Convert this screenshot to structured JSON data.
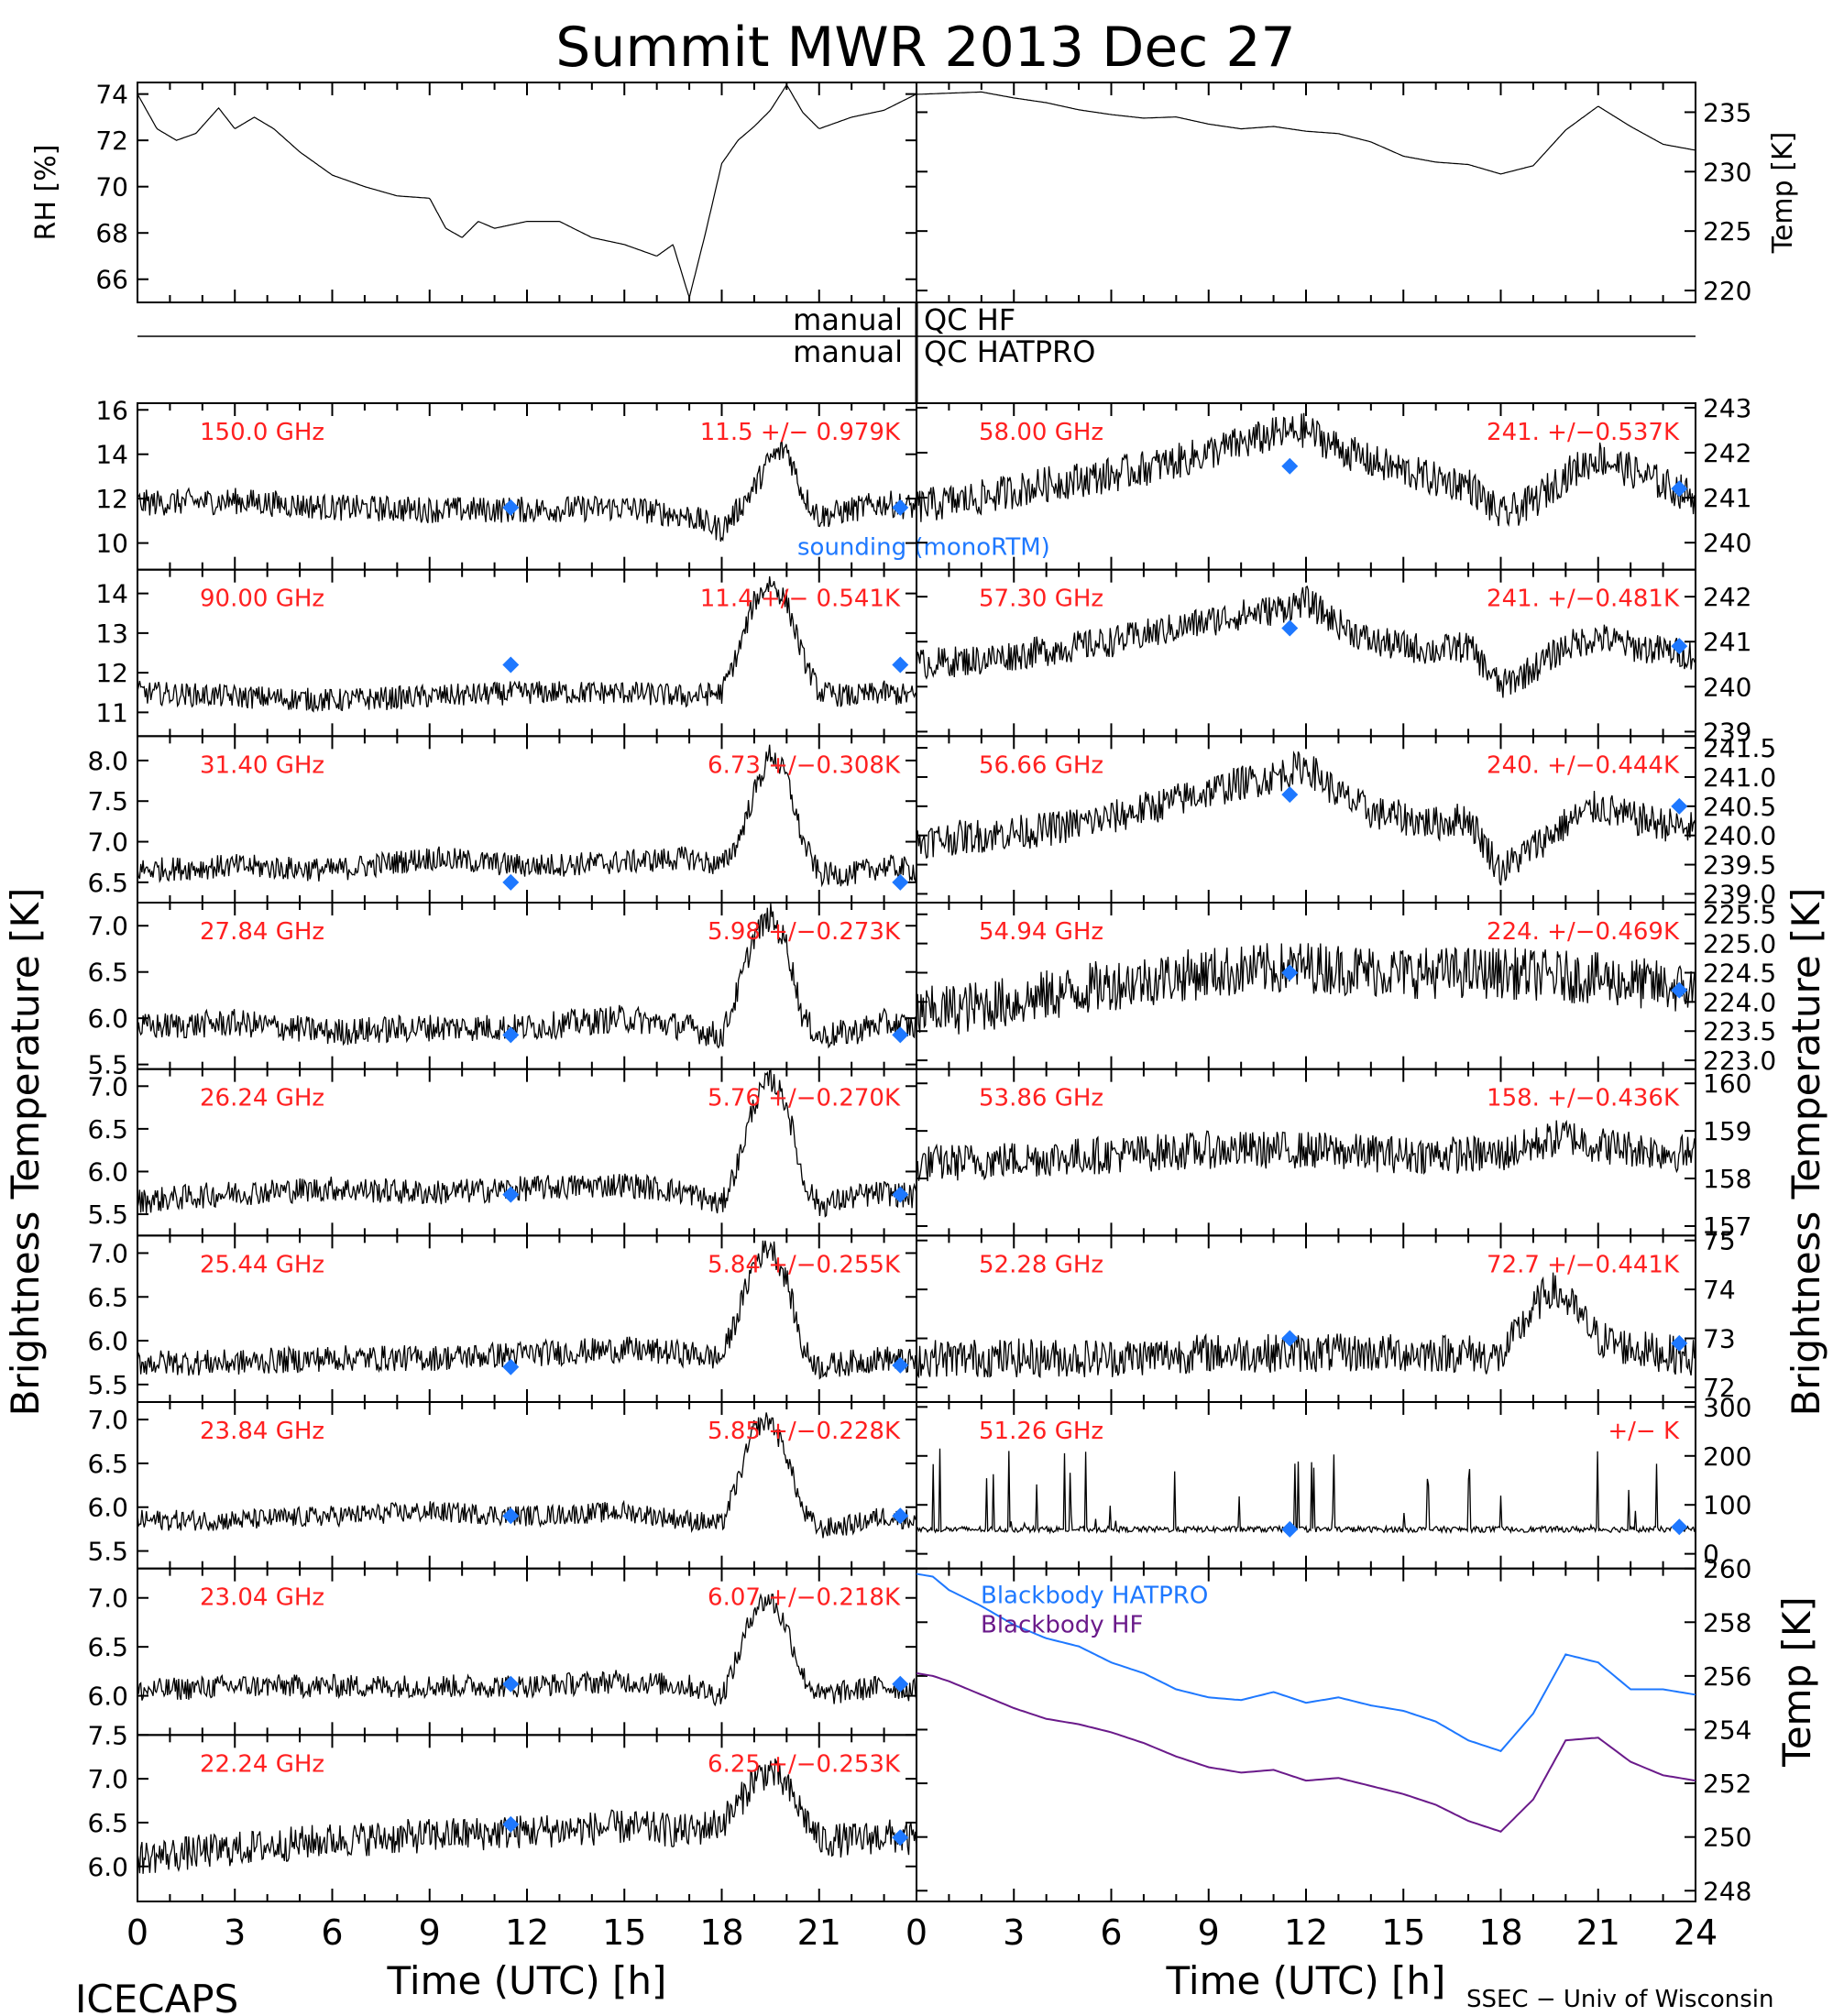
{
  "title": "Summit MWR 2013 Dec 27",
  "footer": {
    "left": "ICECAPS",
    "right": "SSEC − Univ of Wisconsin",
    "xlabel": "Time (UTC) [h]"
  },
  "left_ylabel": "Brightness Temperature [K]",
  "right_ylabel": "Brightness Temperature [K]",
  "qc_labels": {
    "manual_hf": "manual",
    "qc_hf": "QC HF",
    "manual_hatpro": "manual",
    "qc_hatpro": "QC HATPRO"
  },
  "colors": {
    "channel_label": "#ff2020",
    "sounding_marker": "#1e78ff",
    "blackbody_hatpro": "#1e78ff",
    "blackbody_hf": "#6a1a8a",
    "trace": "#000000"
  },
  "chart_data": [
    {
      "type": "line",
      "panel": "rh",
      "ylabel": "RH [%]",
      "ylim": [
        65,
        74.5
      ],
      "yticks": [
        66,
        68,
        70,
        72,
        74
      ],
      "xlim": [
        0,
        24
      ],
      "x": [
        0,
        0.6,
        1.2,
        1.8,
        2.5,
        3,
        3.6,
        4.2,
        5,
        6,
        7,
        8,
        9,
        9.5,
        10,
        10.5,
        11,
        12,
        13,
        14,
        15,
        16,
        16.5,
        17,
        17.5,
        18,
        18.5,
        19,
        19.5,
        20,
        20.5,
        21,
        22,
        23,
        24
      ],
      "y": [
        74,
        72.5,
        72,
        72.3,
        73.4,
        72.5,
        73,
        72.5,
        71.5,
        70.5,
        70,
        69.6,
        69.5,
        68.2,
        67.8,
        68.5,
        68.2,
        68.5,
        68.5,
        67.8,
        67.5,
        67,
        67.5,
        65.2,
        68,
        71,
        72,
        72.6,
        73.3,
        74.4,
        73.2,
        72.5,
        73,
        73.3,
        74
      ]
    },
    {
      "type": "line",
      "panel": "air_temp",
      "ylabel": "Temp [K]",
      "ylim": [
        219,
        237.5
      ],
      "yticks": [
        220,
        225,
        230,
        235
      ],
      "xlim": [
        0,
        24
      ],
      "x": [
        0,
        1,
        2,
        3,
        4,
        5,
        6,
        7,
        8,
        9,
        10,
        11,
        12,
        13,
        14,
        15,
        16,
        17,
        18,
        19,
        20,
        21,
        22,
        23,
        24
      ],
      "y": [
        236.5,
        236.6,
        236.7,
        236.2,
        235.8,
        235.2,
        234.8,
        234.5,
        234.6,
        234,
        233.6,
        233.8,
        233.4,
        233.2,
        232.5,
        231.3,
        230.8,
        230.6,
        229.8,
        230.5,
        233.5,
        235.5,
        233.8,
        232.3,
        231.8
      ]
    },
    {
      "type": "line",
      "panel": "ch",
      "channel": "150.0 GHz",
      "stat": "11.5 +/− 0.979K",
      "ylim": [
        8.8,
        16.3
      ],
      "yticks": [
        10,
        12,
        14,
        16
      ],
      "x": [
        0,
        3,
        6,
        9,
        12,
        15,
        17,
        18,
        18.5,
        19,
        19.5,
        20,
        20.5,
        21,
        22,
        23,
        24
      ],
      "y": [
        11.8,
        11.9,
        11.6,
        11.5,
        11.5,
        11.6,
        11.2,
        10.6,
        11.5,
        12.5,
        13.8,
        14.3,
        12.2,
        11.2,
        11.5,
        11.8,
        11.6
      ],
      "noise": 0.6,
      "sounding": [
        [
          11.5,
          11.6
        ],
        [
          23.5,
          11.6
        ]
      ],
      "note": "sounding (monoRTM)"
    },
    {
      "type": "line",
      "panel": "ch",
      "channel": "90.00 GHz",
      "stat": "11.4 +/− 0.541K",
      "ylim": [
        10.4,
        14.6
      ],
      "yticks": [
        11,
        12,
        13,
        14
      ],
      "x": [
        0,
        3,
        6,
        9,
        12,
        15,
        17,
        18,
        18.5,
        19,
        19.5,
        20,
        20.5,
        21,
        22,
        23,
        24
      ],
      "y": [
        11.5,
        11.4,
        11.3,
        11.4,
        11.5,
        11.5,
        11.4,
        11.5,
        12.5,
        13.8,
        14.3,
        13.8,
        12.4,
        11.5,
        11.4,
        11.5,
        11.4
      ],
      "noise": 0.3,
      "sounding": [
        [
          11.5,
          12.2
        ],
        [
          23.5,
          12.2
        ]
      ]
    },
    {
      "type": "line",
      "panel": "ch",
      "channel": "31.40 GHz",
      "stat": "6.73 +/−0.308K",
      "ylim": [
        6.25,
        8.3
      ],
      "yticks": [
        6.5,
        7.0,
        7.5,
        8.0
      ],
      "x": [
        0,
        3,
        6,
        9,
        12,
        15,
        17,
        18,
        18.5,
        19,
        19.5,
        20,
        20.5,
        21,
        22,
        23,
        24
      ],
      "y": [
        6.65,
        6.7,
        6.65,
        6.8,
        6.7,
        6.75,
        6.8,
        6.7,
        7.0,
        7.6,
        8.1,
        7.8,
        7.0,
        6.6,
        6.6,
        6.7,
        6.65
      ],
      "noise": 0.15,
      "sounding": [
        [
          11.5,
          6.5
        ],
        [
          23.5,
          6.5
        ]
      ]
    },
    {
      "type": "line",
      "panel": "ch",
      "channel": "27.84 GHz",
      "stat": "5.98 +/−0.273K",
      "ylim": [
        5.45,
        7.25
      ],
      "yticks": [
        5.5,
        6.0,
        6.5,
        7.0
      ],
      "x": [
        0,
        3,
        6,
        9,
        12,
        15,
        17,
        18,
        18.5,
        19,
        19.5,
        20,
        20.5,
        21,
        22,
        23,
        24
      ],
      "y": [
        5.9,
        5.95,
        5.85,
        5.9,
        5.9,
        6.0,
        5.9,
        5.8,
        6.3,
        6.9,
        7.1,
        6.8,
        6.0,
        5.8,
        5.85,
        5.95,
        5.9
      ],
      "noise": 0.15,
      "sounding": [
        [
          11.5,
          5.82
        ],
        [
          23.5,
          5.82
        ]
      ]
    },
    {
      "type": "line",
      "panel": "ch",
      "channel": "26.24 GHz",
      "stat": "5.76 +/−0.270K",
      "ylim": [
        5.25,
        7.2
      ],
      "yticks": [
        5.5,
        6.0,
        6.5,
        7.0
      ],
      "x": [
        0,
        3,
        6,
        9,
        12,
        15,
        17,
        18,
        18.5,
        19,
        19.5,
        20,
        20.5,
        21,
        22,
        23,
        24
      ],
      "y": [
        5.65,
        5.75,
        5.8,
        5.75,
        5.8,
        5.85,
        5.75,
        5.6,
        6.1,
        6.8,
        7.1,
        6.8,
        5.9,
        5.6,
        5.7,
        5.75,
        5.7
      ],
      "noise": 0.15,
      "sounding": [
        [
          11.5,
          5.73
        ],
        [
          23.5,
          5.73
        ]
      ]
    },
    {
      "type": "line",
      "panel": "ch",
      "channel": "25.44 GHz",
      "stat": "5.84 +/−0.255K",
      "ylim": [
        5.3,
        7.2
      ],
      "yticks": [
        5.5,
        6.0,
        6.5,
        7.0
      ],
      "x": [
        0,
        3,
        6,
        9,
        12,
        15,
        17,
        18,
        18.5,
        19,
        19.5,
        20,
        20.5,
        21,
        22,
        23,
        24
      ],
      "y": [
        5.75,
        5.75,
        5.8,
        5.8,
        5.85,
        5.9,
        5.85,
        5.8,
        6.3,
        6.9,
        7.1,
        6.7,
        5.9,
        5.7,
        5.75,
        5.8,
        5.75
      ],
      "noise": 0.15,
      "sounding": [
        [
          11.5,
          5.7
        ],
        [
          23.5,
          5.72
        ]
      ]
    },
    {
      "type": "line",
      "panel": "ch",
      "channel": "23.84 GHz",
      "stat": "5.85 +/−0.228K",
      "ylim": [
        5.3,
        7.2
      ],
      "yticks": [
        5.5,
        6.0,
        6.5,
        7.0
      ],
      "x": [
        0,
        3,
        6,
        9,
        12,
        15,
        17,
        18,
        18.5,
        19,
        19.5,
        20,
        20.5,
        21,
        22,
        23,
        24
      ],
      "y": [
        5.85,
        5.85,
        5.9,
        5.95,
        5.9,
        5.95,
        5.85,
        5.8,
        6.3,
        6.9,
        7.0,
        6.6,
        5.95,
        5.75,
        5.8,
        5.9,
        5.85
      ],
      "noise": 0.12,
      "sounding": [
        [
          11.5,
          5.9
        ],
        [
          23.5,
          5.9
        ]
      ]
    },
    {
      "type": "line",
      "panel": "ch",
      "channel": "23.04 GHz",
      "stat": "6.07 +/−0.218K",
      "ylim": [
        5.6,
        7.3
      ],
      "yticks": [
        6.0,
        6.5,
        7.0
      ],
      "x": [
        0,
        3,
        6,
        9,
        12,
        15,
        17,
        18,
        18.5,
        19,
        19.5,
        20,
        20.5,
        21,
        22,
        23,
        24
      ],
      "y": [
        6.05,
        6.1,
        6.1,
        6.1,
        6.1,
        6.15,
        6.1,
        6.0,
        6.4,
        6.9,
        7.0,
        6.7,
        6.2,
        6.0,
        6.05,
        6.1,
        6.05
      ],
      "noise": 0.12,
      "sounding": [
        [
          11.5,
          6.12
        ],
        [
          23.5,
          6.12
        ]
      ]
    },
    {
      "type": "line",
      "panel": "ch",
      "channel": "22.24 GHz",
      "stat": "6.25 +/−0.253K",
      "ylim": [
        5.6,
        7.5
      ],
      "yticks": [
        6.0,
        6.5,
        7.0,
        7.5
      ],
      "x": [
        0,
        3,
        6,
        9,
        12,
        15,
        17,
        18,
        18.5,
        19,
        19.5,
        20,
        20.5,
        21,
        22,
        23,
        24
      ],
      "y": [
        6.1,
        6.2,
        6.3,
        6.35,
        6.4,
        6.45,
        6.4,
        6.5,
        6.7,
        7.0,
        7.1,
        6.9,
        6.6,
        6.3,
        6.3,
        6.35,
        6.3
      ],
      "noise": 0.2,
      "sounding": [
        [
          11.5,
          6.48
        ],
        [
          23.5,
          6.33
        ]
      ]
    },
    {
      "type": "line",
      "panel": "ch",
      "channel": "58.00 GHz",
      "stat": "241. +/−0.537K",
      "ylim": [
        239.4,
        243.1
      ],
      "yticks": [
        240,
        241,
        242,
        243
      ],
      "x": [
        0,
        2,
        4,
        6,
        8,
        10,
        11,
        12,
        13,
        14,
        16,
        17,
        18,
        19,
        20,
        21,
        22,
        23,
        24
      ],
      "y": [
        240.8,
        241.0,
        241.3,
        241.5,
        241.8,
        242.2,
        242.4,
        242.5,
        242.1,
        241.8,
        241.4,
        241.3,
        240.6,
        240.9,
        241.5,
        241.9,
        241.6,
        241.3,
        241.0
      ],
      "noise": 0.4,
      "sounding": [
        [
          11.5,
          241.7
        ],
        [
          23.5,
          241.2
        ]
      ]
    },
    {
      "type": "line",
      "panel": "ch",
      "channel": "57.30 GHz",
      "stat": "241. +/−0.481K",
      "ylim": [
        238.9,
        242.6
      ],
      "yticks": [
        239,
        240,
        241,
        242
      ],
      "x": [
        0,
        2,
        4,
        6,
        8,
        10,
        11,
        12,
        13,
        14,
        16,
        17,
        18,
        19,
        20,
        21,
        22,
        23,
        24
      ],
      "y": [
        240.5,
        240.6,
        240.8,
        241.0,
        241.3,
        241.6,
        241.7,
        241.9,
        241.4,
        241.0,
        240.8,
        240.9,
        240.0,
        240.4,
        240.9,
        241.1,
        240.9,
        240.8,
        240.7
      ],
      "noise": 0.35,
      "sounding": [
        [
          11.5,
          241.3
        ],
        [
          23.5,
          240.9
        ]
      ]
    },
    {
      "type": "line",
      "panel": "ch",
      "channel": "56.66 GHz",
      "stat": "240. +/−0.444K",
      "ylim": [
        238.85,
        241.7
      ],
      "yticks": [
        239.0,
        239.5,
        240.0,
        240.5,
        241.0,
        241.5
      ],
      "x": [
        0,
        2,
        4,
        6,
        8,
        10,
        11,
        12,
        13,
        14,
        16,
        17,
        18,
        19,
        20,
        21,
        22,
        23,
        24
      ],
      "y": [
        239.9,
        240.0,
        240.1,
        240.3,
        240.6,
        240.9,
        241.0,
        241.2,
        240.7,
        240.4,
        240.2,
        240.3,
        239.4,
        239.8,
        240.2,
        240.5,
        240.3,
        240.2,
        240.1
      ],
      "noise": 0.3,
      "sounding": [
        [
          11.5,
          240.7
        ],
        [
          23.5,
          240.5
        ]
      ]
    },
    {
      "type": "line",
      "panel": "ch",
      "channel": "54.94 GHz",
      "stat": "224. +/−0.469K",
      "ylim": [
        222.85,
        225.7
      ],
      "yticks": [
        223.0,
        223.5,
        224.0,
        224.5,
        225.0,
        225.5
      ],
      "x": [
        0,
        3,
        6,
        9,
        12,
        15,
        18,
        21,
        24
      ],
      "y": [
        223.8,
        224.0,
        224.3,
        224.5,
        224.6,
        224.5,
        224.5,
        224.4,
        224.2
      ],
      "noise": 0.45,
      "sounding": [
        [
          11.5,
          224.5
        ],
        [
          23.5,
          224.2
        ]
      ]
    },
    {
      "type": "line",
      "panel": "ch",
      "channel": "53.86 GHz",
      "stat": "158. +/−0.436K",
      "ylim": [
        156.8,
        160.3
      ],
      "yticks": [
        157,
        158,
        159,
        160
      ],
      "x": [
        0,
        3,
        6,
        9,
        12,
        15,
        18,
        20,
        21,
        24
      ],
      "y": [
        158.3,
        158.4,
        158.5,
        158.6,
        158.6,
        158.5,
        158.5,
        158.9,
        158.7,
        158.5
      ],
      "noise": 0.4,
      "sounding": []
    },
    {
      "type": "line",
      "panel": "ch",
      "channel": "52.28 GHz",
      "stat": "72.7 +/−0.441K",
      "ylim": [
        71.7,
        75.1
      ],
      "yticks": [
        72,
        73,
        74,
        75
      ],
      "x": [
        0,
        3,
        6,
        9,
        12,
        15,
        17,
        18,
        19,
        19.5,
        20,
        21,
        22,
        23,
        24
      ],
      "y": [
        72.6,
        72.6,
        72.6,
        72.7,
        72.7,
        72.7,
        72.7,
        72.6,
        73.6,
        74.0,
        73.8,
        73.0,
        72.8,
        72.7,
        72.6
      ],
      "noise": 0.4,
      "sounding": [
        [
          11.5,
          73.0
        ],
        [
          23.5,
          72.9
        ]
      ]
    },
    {
      "type": "line",
      "panel": "ch",
      "channel": "51.26 GHz",
      "stat": "+/−       K",
      "ylim": [
        -30,
        310
      ],
      "yticks": [
        0,
        100,
        200,
        300
      ],
      "x": [
        0,
        24
      ],
      "y": [
        50,
        50
      ],
      "noise": 6,
      "spikes": true,
      "sounding": [
        [
          11.5,
          50
        ],
        [
          23.5,
          55
        ]
      ]
    },
    {
      "type": "line",
      "panel": "blackbody",
      "ylabel": "Temp [K]",
      "ylim": [
        247.6,
        260
      ],
      "yticks": [
        248,
        250,
        252,
        254,
        256,
        258,
        260
      ],
      "xlim": [
        0,
        24
      ],
      "series": [
        {
          "name": "Blackbody HATPRO",
          "x": [
            0,
            0.5,
            1,
            2,
            3,
            4,
            5,
            6,
            7,
            8,
            9,
            10,
            11,
            12,
            13,
            14,
            15,
            16,
            17,
            18,
            19,
            20,
            21,
            22,
            23,
            24
          ],
          "y": [
            259.8,
            259.7,
            259.2,
            258.6,
            257.9,
            257.4,
            257.1,
            256.5,
            256.1,
            255.5,
            255.2,
            255.1,
            255.4,
            255.0,
            255.2,
            254.9,
            254.7,
            254.3,
            253.6,
            253.2,
            254.6,
            256.8,
            256.5,
            255.5,
            255.5,
            255.3
          ]
        },
        {
          "name": "Blackbody HF",
          "x": [
            0,
            0.5,
            1,
            2,
            3,
            4,
            5,
            6,
            7,
            8,
            9,
            10,
            11,
            12,
            13,
            14,
            15,
            16,
            17,
            18,
            19,
            20,
            21,
            22,
            23,
            24
          ],
          "y": [
            256.1,
            256.0,
            255.8,
            255.3,
            254.8,
            254.4,
            254.2,
            253.9,
            253.5,
            253.0,
            252.6,
            252.4,
            252.5,
            252.1,
            252.2,
            251.9,
            251.6,
            251.2,
            250.6,
            250.2,
            251.4,
            253.6,
            253.7,
            252.8,
            252.3,
            252.1
          ]
        }
      ]
    }
  ],
  "xticks": [
    0,
    3,
    6,
    9,
    12,
    15,
    18,
    21,
    24
  ]
}
